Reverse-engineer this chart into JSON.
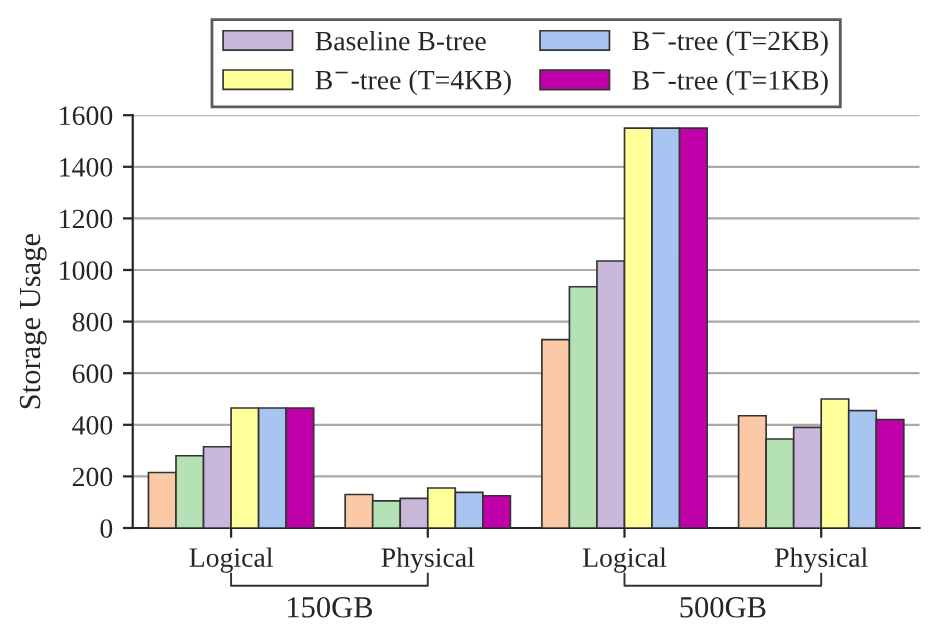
{
  "chart_data": {
    "type": "bar",
    "ylabel": "Storage Usage",
    "categories": [
      "Logical",
      "Physical",
      "Logical",
      "Physical"
    ],
    "series": [
      {
        "color": "#fbc9a5",
        "values": [
          215,
          130,
          730,
          435
        ]
      },
      {
        "color": "#b4e2b4",
        "values": [
          280,
          105,
          935,
          345
        ]
      },
      {
        "name": "Baseline B-tree",
        "color": "#c9b8dc",
        "values": [
          315,
          115,
          1035,
          390
        ]
      },
      {
        "name": "B$^{−}$-tree (T=4KB)",
        "color": "#ffff99",
        "values": [
          465,
          155,
          1550,
          500
        ]
      },
      {
        "name": "B$^{−}$-tree (T=2KB)",
        "color": "#a8c4f0",
        "values": [
          465,
          138,
          1550,
          455
        ]
      },
      {
        "name": "B$^{−}$-tree (T=1KB)",
        "color": "#c000a8",
        "values": [
          465,
          125,
          1550,
          420
        ]
      }
    ],
    "ylim": [
      0,
      1600
    ],
    "yticks": [
      0,
      200,
      400,
      600,
      800,
      1000,
      1200,
      1400,
      1600
    ],
    "grid": "y",
    "legend": "top",
    "annotations": [
      "150GB",
      "500GB"
    ]
  }
}
